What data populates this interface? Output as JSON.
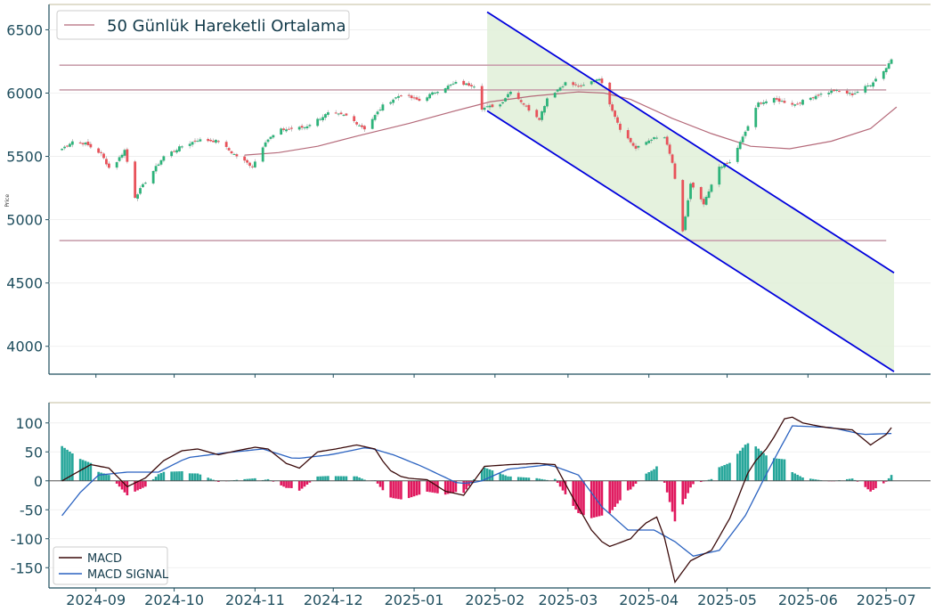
{
  "chart_data": [
    {
      "type": "candlestick",
      "ylabel": "Price",
      "ylim": [
        3780,
        6700
      ],
      "y_ticks": [
        4000,
        4500,
        5000,
        5500,
        6000,
        6500
      ],
      "x_range": [
        "2024-08-14",
        "2025-07-18"
      ],
      "x_ticks": [
        {
          "date": "2024-09-01",
          "label": "2024-09"
        },
        {
          "date": "2024-10-01",
          "label": "2024-10"
        },
        {
          "date": "2024-11-01",
          "label": "2024-11"
        },
        {
          "date": "2024-12-01",
          "label": "2024-12"
        },
        {
          "date": "2025-01-01",
          "label": "2025-01"
        },
        {
          "date": "2025-02-01",
          "label": "2025-02"
        },
        {
          "date": "2025-03-01",
          "label": "2025-03"
        },
        {
          "date": "2025-04-01",
          "label": "2025-04"
        },
        {
          "date": "2025-05-01",
          "label": "2025-05"
        },
        {
          "date": "2025-06-01",
          "label": "2025-06"
        },
        {
          "date": "2025-07-01",
          "label": "2025-07"
        }
      ],
      "legend": {
        "label": "50 Günlük Hareketli Ortalama",
        "position": "top-left"
      },
      "close_anchors": [
        [
          "2024-08-19",
          5560
        ],
        [
          "2024-08-23",
          5620
        ],
        [
          "2024-08-28",
          5600
        ],
        [
          "2024-09-03",
          5520
        ],
        [
          "2024-09-06",
          5410
        ],
        [
          "2024-09-09",
          5460
        ],
        [
          "2024-09-12",
          5550
        ],
        [
          "2024-09-16",
          5180
        ],
        [
          "2024-09-20",
          5300
        ],
        [
          "2024-09-27",
          5500
        ],
        [
          "2024-10-04",
          5580
        ],
        [
          "2024-10-10",
          5630
        ],
        [
          "2024-10-18",
          5620
        ],
        [
          "2024-10-23",
          5530
        ],
        [
          "2024-10-31",
          5420
        ],
        [
          "2024-11-05",
          5620
        ],
        [
          "2024-11-11",
          5710
        ],
        [
          "2024-11-20",
          5730
        ],
        [
          "2024-11-29",
          5840
        ],
        [
          "2024-12-06",
          5820
        ],
        [
          "2024-12-13",
          5720
        ],
        [
          "2024-12-20",
          5900
        ],
        [
          "2024-12-27",
          5990
        ],
        [
          "2025-01-03",
          5940
        ],
        [
          "2025-01-10",
          6020
        ],
        [
          "2025-01-17",
          6080
        ],
        [
          "2025-01-24",
          6060
        ],
        [
          "2025-01-27",
          5880
        ],
        [
          "2025-02-03",
          5910
        ],
        [
          "2025-02-07",
          6020
        ],
        [
          "2025-02-14",
          5870
        ],
        [
          "2025-02-18",
          5800
        ],
        [
          "2025-02-21",
          5960
        ],
        [
          "2025-02-28",
          6080
        ],
        [
          "2025-03-06",
          6050
        ],
        [
          "2025-03-13",
          6120
        ],
        [
          "2025-03-17",
          5920
        ],
        [
          "2025-03-21",
          5720
        ],
        [
          "2025-03-27",
          5560
        ],
        [
          "2025-04-02",
          5640
        ],
        [
          "2025-04-07",
          5650
        ],
        [
          "2025-04-10",
          5450
        ],
        [
          "2025-04-14",
          4900
        ],
        [
          "2025-04-17",
          5280
        ],
        [
          "2025-04-22",
          5120
        ],
        [
          "2025-04-28",
          5420
        ],
        [
          "2025-05-02",
          5450
        ],
        [
          "2025-05-07",
          5650
        ],
        [
          "2025-05-13",
          5920
        ],
        [
          "2025-05-19",
          5950
        ],
        [
          "2025-05-27",
          5910
        ],
        [
          "2025-06-04",
          5980
        ],
        [
          "2025-06-11",
          6020
        ],
        [
          "2025-06-18",
          5990
        ],
        [
          "2025-06-25",
          6070
        ],
        [
          "2025-07-01",
          6200
        ],
        [
          "2025-07-03",
          6270
        ]
      ],
      "series_ma": {
        "name": "50 Günlük Hareketli Ortalama",
        "color": "#b56a7a",
        "points": [
          [
            "2024-10-28",
            5510
          ],
          [
            "2024-11-10",
            5530
          ],
          [
            "2024-11-25",
            5580
          ],
          [
            "2024-12-10",
            5660
          ],
          [
            "2024-12-30",
            5760
          ],
          [
            "2025-01-15",
            5850
          ],
          [
            "2025-01-30",
            5930
          ],
          [
            "2025-02-15",
            5975
          ],
          [
            "2025-03-05",
            6010
          ],
          [
            "2025-03-15",
            6000
          ],
          [
            "2025-03-25",
            5950
          ],
          [
            "2025-04-10",
            5800
          ],
          [
            "2025-04-25",
            5680
          ],
          [
            "2025-05-10",
            5580
          ],
          [
            "2025-05-25",
            5560
          ],
          [
            "2025-06-10",
            5620
          ],
          [
            "2025-06-25",
            5720
          ],
          [
            "2025-07-05",
            5890
          ]
        ]
      },
      "horizontal_levels": [
        {
          "y": 6220,
          "color": "#c9a0ad",
          "from": "2024-08-18",
          "to": "2025-07-01"
        },
        {
          "y": 6025,
          "color": "#c9a0ad",
          "from": "2024-08-18",
          "to": "2025-07-01"
        },
        {
          "y": 4835,
          "color": "#c9a0ad",
          "from": "2024-08-18",
          "to": "2025-07-01"
        }
      ],
      "channel": {
        "color": "#0000dd",
        "fill": "#e0f0d8",
        "upper": [
          [
            "2025-01-29",
            6640
          ],
          [
            "2025-07-04",
            4580
          ]
        ],
        "lower": [
          [
            "2025-01-29",
            5860
          ],
          [
            "2025-07-04",
            3800
          ]
        ]
      },
      "colors": {
        "up": "#2db37a",
        "down": "#e8525a",
        "axis": "#1f4e5e",
        "tick_text": "#1f4e5e"
      }
    },
    {
      "type": "macd",
      "ylim": [
        -185,
        135
      ],
      "y_ticks": [
        -150,
        -100,
        -50,
        0,
        50,
        100
      ],
      "legend": [
        {
          "label": "MACD",
          "color": "#3a0a0a"
        },
        {
          "label": "MACD SIGNAL",
          "color": "#2a62c0"
        }
      ],
      "legend_position": "bottom-left",
      "macd_anchors": [
        [
          "2024-08-19",
          0
        ],
        [
          "2024-08-30",
          28
        ],
        [
          "2024-09-06",
          22
        ],
        [
          "2024-09-13",
          -10
        ],
        [
          "2024-09-20",
          5
        ],
        [
          "2024-09-27",
          35
        ],
        [
          "2024-10-04",
          52
        ],
        [
          "2024-10-10",
          55
        ],
        [
          "2024-10-18",
          45
        ],
        [
          "2024-10-25",
          52
        ],
        [
          "2024-11-01",
          58
        ],
        [
          "2024-11-06",
          55
        ],
        [
          "2024-11-13",
          30
        ],
        [
          "2024-11-18",
          22
        ],
        [
          "2024-11-25",
          50
        ],
        [
          "2024-12-02",
          55
        ],
        [
          "2024-12-10",
          62
        ],
        [
          "2024-12-17",
          55
        ],
        [
          "2024-12-22",
          20
        ],
        [
          "2024-12-28",
          5
        ],
        [
          "2025-01-06",
          2
        ],
        [
          "2025-01-13",
          -18
        ],
        [
          "2025-01-20",
          -25
        ],
        [
          "2025-01-28",
          25
        ],
        [
          "2025-02-07",
          28
        ],
        [
          "2025-02-17",
          30
        ],
        [
          "2025-02-24",
          28
        ],
        [
          "2025-03-03",
          -30
        ],
        [
          "2025-03-10",
          -85
        ],
        [
          "2025-03-16",
          -115
        ],
        [
          "2025-03-25",
          -100
        ],
        [
          "2025-03-30",
          -75
        ],
        [
          "2025-04-05",
          -60
        ],
        [
          "2025-04-11",
          -175
        ],
        [
          "2025-04-17",
          -138
        ],
        [
          "2025-04-25",
          -120
        ],
        [
          "2025-05-02",
          -65
        ],
        [
          "2025-05-10",
          25
        ],
        [
          "2025-05-17",
          60
        ],
        [
          "2025-05-24",
          115
        ],
        [
          "2025-05-30",
          100
        ],
        [
          "2025-06-08",
          92
        ],
        [
          "2025-06-18",
          88
        ],
        [
          "2025-06-25",
          62
        ],
        [
          "2025-07-01",
          80
        ],
        [
          "2025-07-04",
          98
        ]
      ],
      "signal_anchors": [
        [
          "2024-08-19",
          -60
        ],
        [
          "2024-08-26",
          -20
        ],
        [
          "2024-09-02",
          10
        ],
        [
          "2024-09-13",
          15
        ],
        [
          "2024-09-25",
          15
        ],
        [
          "2024-10-06",
          40
        ],
        [
          "2024-10-20",
          48
        ],
        [
          "2024-11-04",
          55
        ],
        [
          "2024-11-16",
          38
        ],
        [
          "2024-11-30",
          45
        ],
        [
          "2024-12-14",
          58
        ],
        [
          "2024-12-24",
          45
        ],
        [
          "2025-01-04",
          25
        ],
        [
          "2025-01-18",
          -5
        ],
        [
          "2025-01-26",
          -2
        ],
        [
          "2025-02-06",
          20
        ],
        [
          "2025-02-22",
          28
        ],
        [
          "2025-03-05",
          10
        ],
        [
          "2025-03-14",
          -45
        ],
        [
          "2025-03-24",
          -85
        ],
        [
          "2025-04-03",
          -85
        ],
        [
          "2025-04-11",
          -105
        ],
        [
          "2025-04-18",
          -130
        ],
        [
          "2025-04-28",
          -120
        ],
        [
          "2025-05-08",
          -60
        ],
        [
          "2025-05-17",
          20
        ],
        [
          "2025-05-26",
          95
        ],
        [
          "2025-06-10",
          92
        ],
        [
          "2025-06-22",
          80
        ],
        [
          "2025-07-04",
          82
        ]
      ],
      "colors": {
        "macd": "#3a0a0a",
        "signal": "#2a62c0",
        "hist_pos": "#26a69a",
        "hist_neg": "#e0185e",
        "zero": "#555555"
      }
    }
  ]
}
